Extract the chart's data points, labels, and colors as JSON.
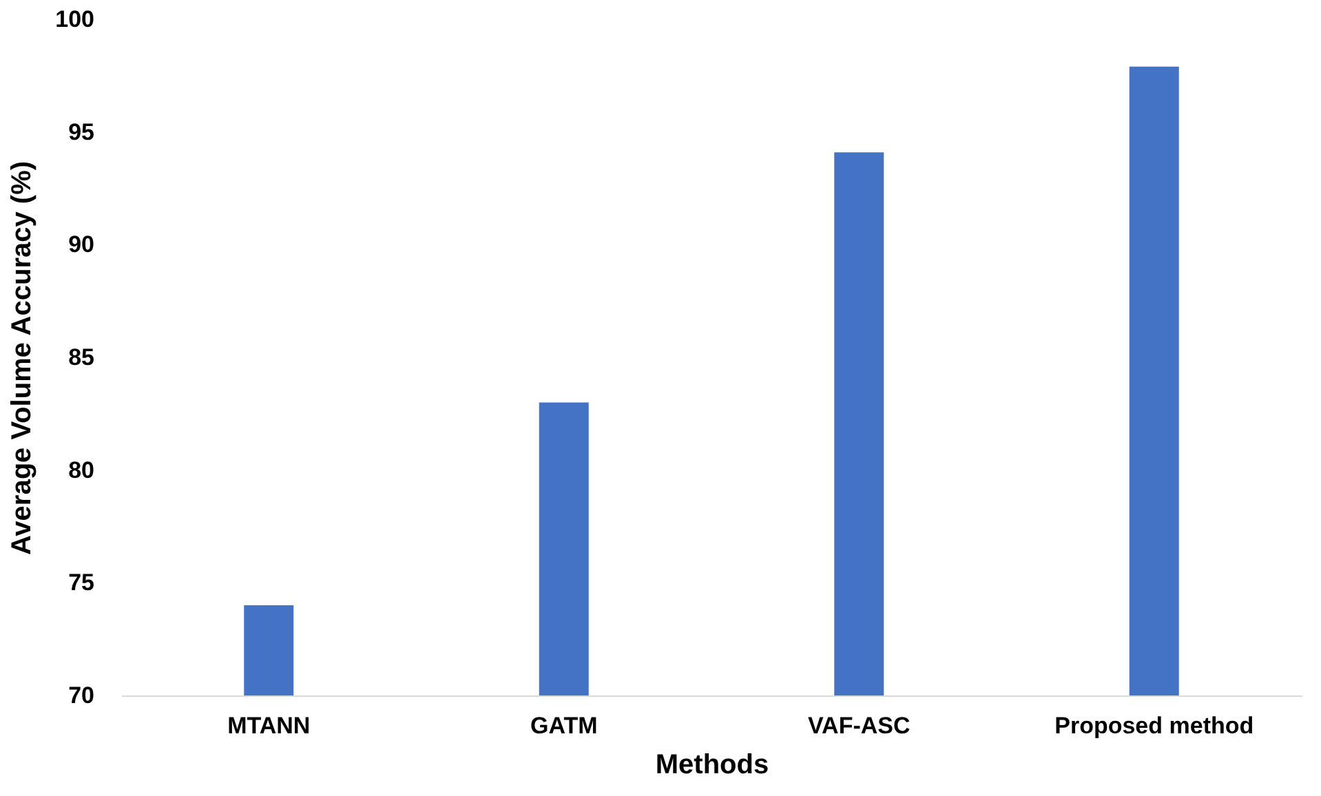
{
  "chart_data": {
    "type": "bar",
    "xlabel": "Methods",
    "ylabel": "Average Volume Accuracy (%)",
    "categories": [
      "MTANN",
      "GATM",
      "VAF-ASC",
      "Proposed method"
    ],
    "values": [
      74,
      83,
      94.1,
      97.9
    ],
    "color": "#4472c4",
    "ylim": [
      70,
      100
    ],
    "yticks": [
      70,
      75,
      80,
      85,
      90,
      95,
      100
    ],
    "grid": false
  }
}
